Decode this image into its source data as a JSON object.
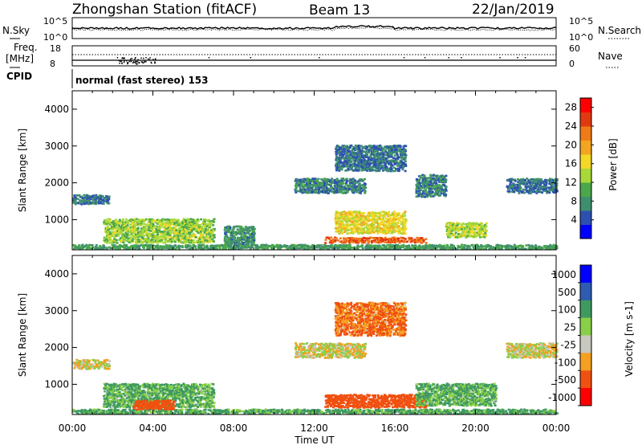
{
  "header": {
    "station": "Zhongshan Station (fitACF)",
    "beam": "Beam 13",
    "date": "22/Jan/2019"
  },
  "noise_panel": {
    "left_label": "N.Sky",
    "right_label": "N.Search",
    "left_ticks": [
      "10^5",
      "10^0"
    ],
    "right_ticks": [
      "10^5",
      "10^0"
    ]
  },
  "freq_panel": {
    "left_label_1": "Freq.",
    "left_label_2": "[MHz]",
    "left_ticks": [
      "18",
      "8"
    ],
    "right_ticks": [
      "60",
      "0"
    ],
    "right_label": "Nave"
  },
  "cpid": {
    "label": "CPID",
    "text": "normal (fast stereo) 153"
  },
  "chart_data": [
    {
      "type": "heatmap",
      "title": "",
      "parameter": "Power",
      "colorbar_label": "Power [dB]",
      "xlabel": "",
      "ylabel": "Slant Range [km]",
      "xlim_hours": [
        0,
        24
      ],
      "ylim_km": [
        180,
        4500
      ],
      "yticks": [
        1000,
        2000,
        3000,
        4000
      ],
      "colorbar_ticks": [
        4,
        8,
        12,
        16,
        20,
        24,
        28
      ],
      "colorbar_range": [
        0,
        30
      ],
      "palette": [
        "#0000ff",
        "#2d50b0",
        "#3f8f6f",
        "#4aa84a",
        "#a7d838",
        "#f3d826",
        "#f4a520",
        "#f07a18",
        "#e23a10",
        "#ff0000"
      ],
      "echo_regions": [
        {
          "t": [
            0.0,
            24.0
          ],
          "r": [
            180,
            300
          ],
          "value": 9
        },
        {
          "t": [
            0.0,
            1.8
          ],
          "r": [
            1400,
            1650
          ],
          "value": 6
        },
        {
          "t": [
            1.5,
            7.0
          ],
          "r": [
            350,
            1000
          ],
          "value": 13
        },
        {
          "t": [
            7.5,
            9.0
          ],
          "r": [
            300,
            800
          ],
          "value": 8
        },
        {
          "t": [
            11.0,
            14.5
          ],
          "r": [
            1700,
            2100
          ],
          "value": 7
        },
        {
          "t": [
            12.5,
            17.5
          ],
          "r": [
            350,
            500
          ],
          "value": 24
        },
        {
          "t": [
            13.0,
            16.5
          ],
          "r": [
            600,
            1200
          ],
          "value": 16
        },
        {
          "t": [
            13.0,
            16.5
          ],
          "r": [
            2300,
            3000
          ],
          "value": 6
        },
        {
          "t": [
            17.0,
            18.5
          ],
          "r": [
            1600,
            2200
          ],
          "value": 7
        },
        {
          "t": [
            18.5,
            20.5
          ],
          "r": [
            500,
            900
          ],
          "value": 14
        },
        {
          "t": [
            21.5,
            24.0
          ],
          "r": [
            1700,
            2100
          ],
          "value": 6
        }
      ]
    },
    {
      "type": "heatmap",
      "title": "",
      "parameter": "Velocity",
      "colorbar_label": "Velocity [m s-1]",
      "xlabel": "Time UT",
      "ylabel": "Slant Range [km]",
      "xlim_hours": [
        0,
        24
      ],
      "xtick_labels": [
        "00:00",
        "04:00",
        "08:00",
        "12:00",
        "16:00",
        "20:00",
        "00:00"
      ],
      "ylim_km": [
        180,
        4500
      ],
      "yticks": [
        1000,
        2000,
        3000,
        4000
      ],
      "colorbar_ticks": [
        "1000",
        "500",
        "100",
        "25",
        "-25",
        "-100",
        "-500",
        "-1000"
      ],
      "palette": [
        "#ff0000",
        "#f05010",
        "#f4a020",
        "#c8c8c0",
        "#88d048",
        "#3f9a60",
        "#2d5cb0",
        "#0000ff"
      ],
      "echo_regions": [
        {
          "t": [
            0.0,
            24.0
          ],
          "r": [
            180,
            300
          ],
          "value": 150
        },
        {
          "t": [
            0.0,
            1.8
          ],
          "r": [
            1400,
            1650
          ],
          "value": 0
        },
        {
          "t": [
            1.5,
            7.0
          ],
          "r": [
            350,
            1000
          ],
          "value": 120
        },
        {
          "t": [
            3.0,
            5.0
          ],
          "r": [
            300,
            550
          ],
          "value": -250
        },
        {
          "t": [
            11.0,
            14.5
          ],
          "r": [
            1700,
            2100
          ],
          "value": 0
        },
        {
          "t": [
            12.5,
            17.5
          ],
          "r": [
            350,
            700
          ],
          "value": -250
        },
        {
          "t": [
            13.0,
            16.5
          ],
          "r": [
            2300,
            3200
          ],
          "value": -120
        },
        {
          "t": [
            17.0,
            21.0
          ],
          "r": [
            400,
            1000
          ],
          "value": 120
        },
        {
          "t": [
            21.5,
            24.0
          ],
          "r": [
            1700,
            2100
          ],
          "value": 0
        }
      ]
    }
  ]
}
